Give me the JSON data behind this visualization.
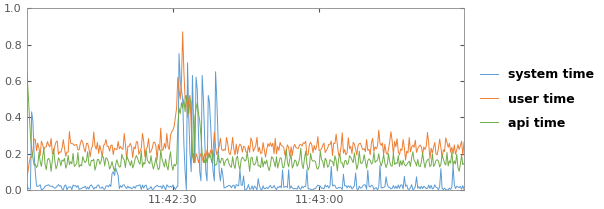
{
  "ylim": [
    0.0,
    1.0
  ],
  "yticks": [
    0.0,
    0.2,
    0.4,
    0.6,
    0.8,
    1.0
  ],
  "xtick_labels": [
    "11:42:30",
    "11:43:00"
  ],
  "xtick_positions": [
    120,
    240
  ],
  "total_points": 360,
  "line_colors": {
    "system": "#5b9bd5",
    "user": "#ed7d31",
    "api": "#70ad47"
  },
  "legend_labels": [
    "system time",
    "user time",
    "api time"
  ],
  "background_color": "#ffffff",
  "line_width": 0.7,
  "figsize": [
    6.04,
    2.09
  ],
  "dpi": 100
}
